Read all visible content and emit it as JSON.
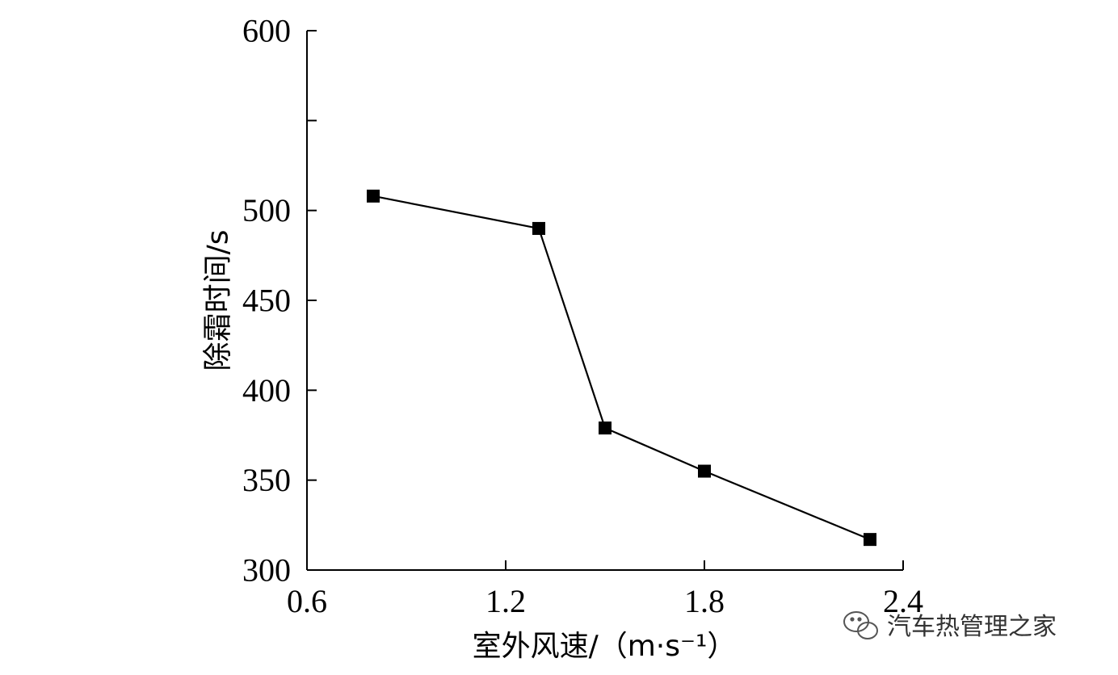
{
  "chart_data": {
    "type": "line",
    "xlabel": "室外风速/（m·s⁻¹）",
    "ylabel": "除霜时间/s",
    "xlim": [
      0.6,
      2.4
    ],
    "ylim": [
      300,
      600
    ],
    "xticks": [
      "0.6",
      "1.2",
      "1.8",
      "2.4"
    ],
    "yticks": [
      "300",
      "350",
      "400",
      "450",
      "500",
      "550",
      "600"
    ],
    "ytick_labels_shown": [
      "300",
      "350",
      "400",
      "450",
      "500",
      "",
      "600"
    ],
    "grid": false,
    "marker": "square",
    "color": "#000000",
    "series": [
      {
        "x": [
          0.8,
          1.3,
          1.5,
          1.8,
          2.3
        ],
        "y": [
          508,
          490,
          379,
          355,
          317
        ]
      }
    ]
  },
  "watermark": {
    "text": "汽车热管理之家",
    "icon": "wechat-icon"
  }
}
